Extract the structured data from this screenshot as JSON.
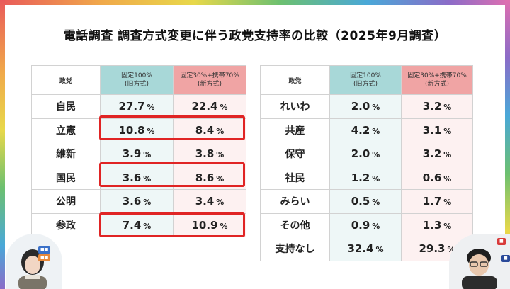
{
  "title": "電話調査 調査方式変更に伴う政党支持率の比較（2025年9月調査）",
  "headers": {
    "party": "政党",
    "old_line1": "固定100%",
    "old_line2": "(旧方式)",
    "new_line1": "固定30%+携帯70%",
    "new_line2": "(新方式)"
  },
  "unit": "%",
  "left_table": [
    {
      "party": "自民",
      "old": "27.7",
      "new": "22.4"
    },
    {
      "party": "立憲",
      "old": "10.8",
      "new": "8.4"
    },
    {
      "party": "維新",
      "old": "3.9",
      "new": "3.8"
    },
    {
      "party": "国民",
      "old": "3.6",
      "new": "8.6"
    },
    {
      "party": "公明",
      "old": "3.6",
      "new": "3.4"
    },
    {
      "party": "参政",
      "old": "7.4",
      "new": "10.9"
    }
  ],
  "right_table": [
    {
      "party": "れいわ",
      "old": "2.0",
      "new": "3.2"
    },
    {
      "party": "共産",
      "old": "4.2",
      "new": "3.1"
    },
    {
      "party": "保守",
      "old": "2.0",
      "new": "3.2"
    },
    {
      "party": "社民",
      "old": "1.2",
      "new": "0.6"
    },
    {
      "party": "みらい",
      "old": "0.5",
      "new": "1.7"
    },
    {
      "party": "その他",
      "old": "0.9",
      "new": "1.3"
    },
    {
      "party": "支持なし",
      "old": "32.4",
      "new": "29.3"
    }
  ],
  "highlighted_parties": [
    "立憲",
    "国民",
    "参政"
  ],
  "colors": {
    "old_header": "#a8d8d8",
    "new_header": "#f0a4a4",
    "highlight": "#e02424"
  }
}
